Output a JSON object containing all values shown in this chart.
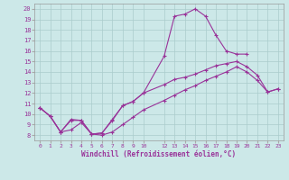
{
  "xlabel": "Windchill (Refroidissement éolien,°C)",
  "background_color": "#cce8e8",
  "grid_color": "#aacccc",
  "line_color": "#993399",
  "xlim": [
    -0.5,
    23.5
  ],
  "ylim": [
    7.5,
    20.5
  ],
  "xticks": [
    0,
    1,
    2,
    3,
    4,
    5,
    6,
    7,
    8,
    9,
    10,
    12,
    13,
    14,
    15,
    16,
    17,
    18,
    19,
    20,
    21,
    22,
    23
  ],
  "yticks": [
    8,
    9,
    10,
    11,
    12,
    13,
    14,
    15,
    16,
    17,
    18,
    19,
    20
  ],
  "series": [
    {
      "x": [
        0,
        1,
        2,
        3,
        4,
        5,
        6,
        7,
        8,
        9,
        10,
        12,
        13,
        14,
        15,
        16,
        17,
        18,
        19,
        20
      ],
      "y": [
        10.6,
        9.8,
        8.3,
        9.5,
        9.4,
        8.1,
        8.2,
        9.5,
        10.8,
        11.2,
        12.0,
        15.5,
        19.3,
        19.5,
        20.0,
        19.3,
        17.5,
        16.0,
        15.7,
        15.7
      ]
    },
    {
      "x": [
        0,
        1,
        2,
        3,
        4,
        5,
        6,
        7,
        8,
        9,
        10,
        12,
        13,
        14,
        15,
        16,
        17,
        18,
        19,
        20,
        21,
        22,
        23
      ],
      "y": [
        10.6,
        9.8,
        8.3,
        9.4,
        9.4,
        8.1,
        8.2,
        9.4,
        10.8,
        11.2,
        12.0,
        12.8,
        13.3,
        13.5,
        13.8,
        14.2,
        14.6,
        14.8,
        15.0,
        14.5,
        13.7,
        12.1,
        12.4
      ]
    },
    {
      "x": [
        0,
        1,
        2,
        3,
        4,
        5,
        6,
        7,
        8,
        9,
        10,
        12,
        13,
        14,
        15,
        16,
        17,
        18,
        19,
        20,
        21,
        22,
        23
      ],
      "y": [
        10.6,
        9.8,
        8.3,
        8.5,
        9.2,
        8.1,
        8.0,
        8.3,
        9.0,
        9.7,
        10.4,
        11.3,
        11.8,
        12.3,
        12.7,
        13.2,
        13.6,
        14.0,
        14.5,
        14.0,
        13.2,
        12.1,
        12.4
      ]
    }
  ]
}
